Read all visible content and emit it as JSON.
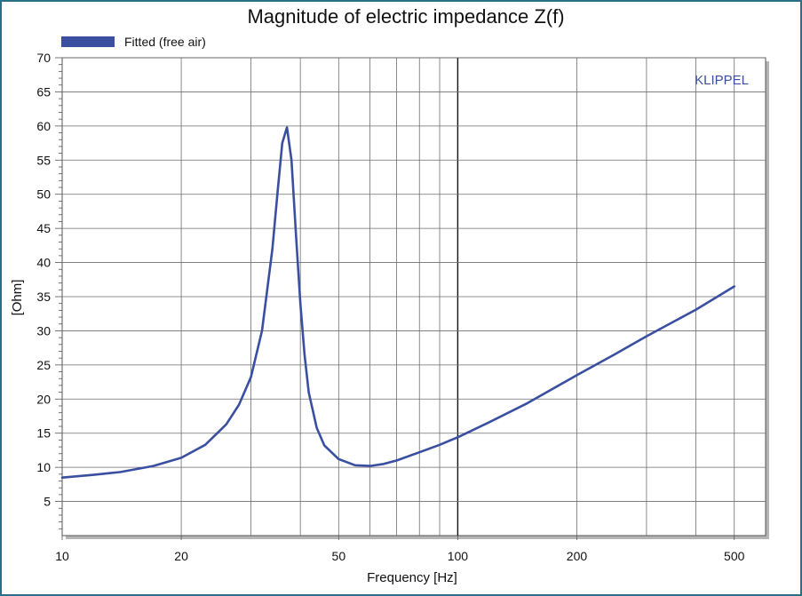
{
  "chart_data": {
    "type": "line",
    "title": "Magnitude of electric impedance Z(f)",
    "xlabel": "Frequency [Hz]",
    "ylabel": "[Ohm]",
    "watermark": "KLIPPEL",
    "x_scale": "log",
    "xlim": [
      10,
      600
    ],
    "ylim": [
      0,
      70
    ],
    "x_tick_labels": [
      "10",
      "20",
      "50",
      "100",
      "200",
      "500"
    ],
    "x_tick_values": [
      10,
      20,
      50,
      100,
      200,
      500
    ],
    "y_tick_labels": [
      "5",
      "10",
      "15",
      "20",
      "25",
      "30",
      "35",
      "40",
      "45",
      "50",
      "55",
      "60",
      "65",
      "70"
    ],
    "y_tick_values": [
      5,
      10,
      15,
      20,
      25,
      30,
      35,
      40,
      45,
      50,
      55,
      60,
      65,
      70
    ],
    "grid": true,
    "legend_position": "top-left",
    "series_color": "#3a4fa0",
    "series": [
      {
        "name": "Fitted (free air)",
        "x": [
          10,
          12,
          14,
          17,
          20,
          23,
          26,
          28,
          30,
          32,
          34,
          35,
          36,
          37,
          38,
          39,
          40,
          41,
          42,
          44,
          46,
          50,
          55,
          60,
          65,
          70,
          80,
          90,
          100,
          120,
          150,
          200,
          250,
          300,
          400,
          500
        ],
        "y": [
          8.5,
          8.9,
          9.3,
          10.2,
          11.4,
          13.3,
          16.3,
          19.2,
          23.2,
          30.0,
          42.0,
          50.0,
          57.5,
          59.8,
          55.0,
          44.0,
          34.0,
          26.5,
          21.0,
          15.8,
          13.2,
          11.2,
          10.3,
          10.2,
          10.5,
          11.0,
          12.2,
          13.3,
          14.4,
          16.6,
          19.4,
          23.5,
          26.6,
          29.2,
          33.1,
          36.5
        ]
      }
    ]
  }
}
